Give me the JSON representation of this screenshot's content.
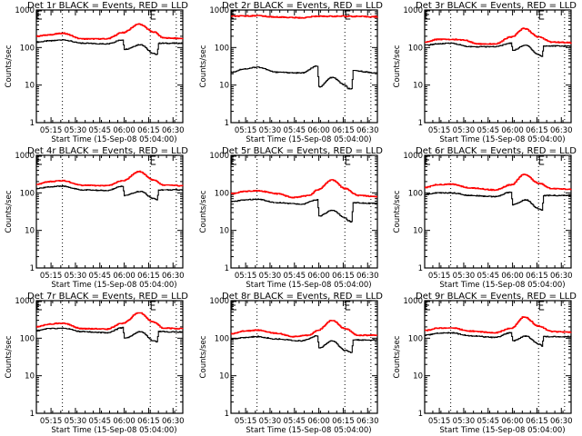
{
  "figure": {
    "background": "#ffffff",
    "colors": {
      "events": "#000000",
      "lld": "#ff0000",
      "axes": "#000000"
    }
  },
  "chart_data": [
    {
      "type": "line",
      "title": "Det 1r BLACK = Events, RED = LLD",
      "xlabel": "Start Time (15-Sep-08 05:04:00)",
      "ylabel": "Counts/sec",
      "yscale": "log",
      "ylim": [
        1,
        1000
      ],
      "yticks": [
        "1",
        "10",
        "100",
        "1000"
      ],
      "xticks": [
        "05:15",
        "05:30",
        "05:45",
        "06:00",
        "06:15",
        "06:30"
      ],
      "xlim_minutes": [
        2,
        92
      ],
      "vlines_minutes": [
        18,
        72,
        88
      ],
      "markers_minutes": [
        2,
        72
      ],
      "series": [
        {
          "name": "Events",
          "color": "#000000",
          "x": [
            2,
            10,
            18,
            30,
            45,
            55,
            56,
            66,
            74,
            76,
            77,
            92
          ],
          "y": [
            140,
            150,
            160,
            130,
            125,
            160,
            90,
            120,
            70,
            65,
            130,
            130
          ]
        },
        {
          "name": "LLD",
          "color": "#ff0000",
          "x": [
            2,
            10,
            18,
            30,
            45,
            55,
            65,
            74,
            80,
            92
          ],
          "y": [
            200,
            220,
            240,
            170,
            170,
            250,
            420,
            260,
            180,
            175
          ]
        }
      ]
    },
    {
      "type": "line",
      "title": "Det 2r BLACK = Events, RED = LLD",
      "xlabel": "Start Time (15-Sep-08 05:04:00)",
      "ylabel": "Counts/sec",
      "yscale": "log",
      "ylim": [
        1,
        1000
      ],
      "yticks": [
        "1",
        "10",
        "100",
        "1000"
      ],
      "xticks": [
        "05:15",
        "05:30",
        "05:45",
        "06:00",
        "06:15",
        "06:30"
      ],
      "xlim_minutes": [
        2,
        92
      ],
      "vlines_minutes": [
        18,
        72,
        88
      ],
      "markers_minutes": [
        2,
        72
      ],
      "series": [
        {
          "name": "Events",
          "color": "#000000",
          "x": [
            2,
            10,
            18,
            30,
            45,
            55,
            56,
            64,
            72,
            74,
            76,
            77,
            92
          ],
          "y": [
            22,
            27,
            30,
            22,
            21,
            32,
            9,
            16,
            10,
            8,
            8,
            24,
            21
          ]
        },
        {
          "name": "LLD",
          "color": "#ff0000",
          "x": [
            2,
            18,
            30,
            45,
            55,
            72,
            92
          ],
          "y": [
            680,
            700,
            650,
            620,
            680,
            680,
            660
          ]
        }
      ]
    },
    {
      "type": "line",
      "title": "Det 3r BLACK = Events, RED = LLD",
      "xlabel": "Start Time (15-Sep-08 05:04:00)",
      "ylabel": "Counts/sec",
      "yscale": "log",
      "ylim": [
        1,
        1000
      ],
      "yticks": [
        "1",
        "10",
        "100",
        "1000"
      ],
      "xticks": [
        "05:15",
        "05:30",
        "05:45",
        "06:00",
        "06:15",
        "06:30"
      ],
      "xlim_minutes": [
        2,
        92
      ],
      "vlines_minutes": [
        18,
        72,
        88
      ],
      "markers_minutes": [
        2,
        72
      ],
      "series": [
        {
          "name": "Events",
          "color": "#000000",
          "x": [
            2,
            10,
            18,
            30,
            45,
            55,
            56,
            64,
            72,
            74,
            75,
            92
          ],
          "y": [
            115,
            125,
            130,
            105,
            105,
            130,
            85,
            115,
            65,
            58,
            110,
            110
          ]
        },
        {
          "name": "LLD",
          "color": "#ff0000",
          "x": [
            2,
            10,
            18,
            25,
            35,
            45,
            55,
            63,
            72,
            80,
            92
          ],
          "y": [
            140,
            165,
            165,
            160,
            125,
            125,
            190,
            320,
            190,
            140,
            135
          ]
        }
      ]
    },
    {
      "type": "line",
      "title": "Det 4r BLACK = Events, RED = LLD",
      "xlabel": "Start Time (15-Sep-08 05:04:00)",
      "ylabel": "Counts/sec",
      "yscale": "log",
      "ylim": [
        1,
        1000
      ],
      "yticks": [
        "1",
        "10",
        "100",
        "1000"
      ],
      "xticks": [
        "05:15",
        "05:30",
        "05:45",
        "06:00",
        "06:15",
        "06:30"
      ],
      "xlim_minutes": [
        2,
        92
      ],
      "vlines_minutes": [
        18,
        72,
        88
      ],
      "markers_minutes": [
        2,
        72
      ],
      "series": [
        {
          "name": "Events",
          "color": "#000000",
          "x": [
            2,
            10,
            18,
            30,
            45,
            55,
            56,
            66,
            74,
            76,
            77,
            92
          ],
          "y": [
            130,
            145,
            150,
            120,
            115,
            150,
            85,
            110,
            70,
            65,
            120,
            120
          ]
        },
        {
          "name": "LLD",
          "color": "#ff0000",
          "x": [
            2,
            10,
            18,
            30,
            45,
            55,
            65,
            74,
            80,
            92
          ],
          "y": [
            170,
            200,
            210,
            160,
            155,
            210,
            370,
            220,
            160,
            155
          ]
        }
      ]
    },
    {
      "type": "line",
      "title": "Det 5r BLACK = Events, RED = LLD",
      "xlabel": "Start Time (15-Sep-08 05:04:00)",
      "ylabel": "Counts/sec",
      "yscale": "log",
      "ylim": [
        1,
        1000
      ],
      "yticks": [
        "1",
        "10",
        "100",
        "1000"
      ],
      "xticks": [
        "05:15",
        "05:30",
        "05:45",
        "06:00",
        "06:15",
        "06:30"
      ],
      "xlim_minutes": [
        2,
        92
      ],
      "vlines_minutes": [
        18,
        72,
        88
      ],
      "markers_minutes": [
        2,
        72
      ],
      "series": [
        {
          "name": "Events",
          "color": "#000000",
          "x": [
            2,
            10,
            18,
            30,
            45,
            55,
            56,
            64,
            72,
            74,
            76,
            77,
            92
          ],
          "y": [
            58,
            65,
            68,
            55,
            50,
            65,
            24,
            34,
            22,
            18,
            17,
            55,
            52
          ]
        },
        {
          "name": "LLD",
          "color": "#ff0000",
          "x": [
            2,
            10,
            18,
            30,
            40,
            50,
            55,
            64,
            72,
            80,
            92
          ],
          "y": [
            95,
            110,
            115,
            95,
            75,
            85,
            120,
            220,
            130,
            85,
            80
          ]
        }
      ]
    },
    {
      "type": "line",
      "title": "Det 6r BLACK = Events, RED = LLD",
      "xlabel": "Start Time (15-Sep-08 05:04:00)",
      "ylabel": "Counts/sec",
      "yscale": "log",
      "ylim": [
        1,
        1000
      ],
      "yticks": [
        "1",
        "10",
        "100",
        "1000"
      ],
      "xticks": [
        "05:15",
        "05:30",
        "05:45",
        "06:00",
        "06:15",
        "06:30"
      ],
      "xlim_minutes": [
        2,
        92
      ],
      "vlines_minutes": [
        18,
        72,
        88
      ],
      "markers_minutes": [
        2,
        72
      ],
      "series": [
        {
          "name": "Events",
          "color": "#000000",
          "x": [
            2,
            10,
            18,
            30,
            45,
            55,
            56,
            64,
            72,
            74,
            75,
            92
          ],
          "y": [
            90,
            100,
            100,
            85,
            80,
            105,
            48,
            65,
            38,
            35,
            85,
            85
          ]
        },
        {
          "name": "LLD",
          "color": "#ff0000",
          "x": [
            2,
            10,
            18,
            30,
            45,
            55,
            63,
            72,
            80,
            92
          ],
          "y": [
            140,
            165,
            170,
            135,
            120,
            165,
            310,
            180,
            130,
            125
          ]
        }
      ]
    },
    {
      "type": "line",
      "title": "Det 7r BLACK = Events, RED = LLD",
      "xlabel": "Start Time (15-Sep-08 05:04:00)",
      "ylabel": "Counts/sec",
      "yscale": "log",
      "ylim": [
        1,
        1000
      ],
      "yticks": [
        "1",
        "10",
        "100",
        "1000"
      ],
      "xticks": [
        "05:15",
        "05:30",
        "05:45",
        "06:00",
        "06:15",
        "06:30"
      ],
      "xlim_minutes": [
        2,
        92
      ],
      "vlines_minutes": [
        18,
        72,
        88
      ],
      "markers_minutes": [
        2,
        72
      ],
      "series": [
        {
          "name": "Events",
          "color": "#000000",
          "x": [
            2,
            10,
            18,
            30,
            45,
            55,
            56,
            66,
            74,
            76,
            77,
            92
          ],
          "y": [
            160,
            180,
            185,
            150,
            140,
            190,
            100,
            150,
            85,
            80,
            150,
            145
          ]
        },
        {
          "name": "LLD",
          "color": "#ff0000",
          "x": [
            2,
            10,
            18,
            30,
            45,
            55,
            65,
            74,
            80,
            92
          ],
          "y": [
            200,
            240,
            250,
            180,
            175,
            250,
            480,
            270,
            185,
            180
          ]
        }
      ]
    },
    {
      "type": "line",
      "title": "Det 8r BLACK = Events, RED = LLD",
      "xlabel": "Start Time (15-Sep-08 05:04:00)",
      "ylabel": "Counts/sec",
      "yscale": "log",
      "ylim": [
        1,
        1000
      ],
      "yticks": [
        "1",
        "10",
        "100",
        "1000"
      ],
      "xticks": [
        "05:15",
        "05:30",
        "05:45",
        "06:00",
        "06:15",
        "06:30"
      ],
      "xlim_minutes": [
        2,
        92
      ],
      "vlines_minutes": [
        18,
        72,
        88
      ],
      "markers_minutes": [
        2,
        72
      ],
      "series": [
        {
          "name": "Events",
          "color": "#000000",
          "x": [
            2,
            10,
            18,
            30,
            45,
            55,
            56,
            64,
            72,
            74,
            76,
            77,
            92
          ],
          "y": [
            95,
            105,
            110,
            95,
            85,
            115,
            55,
            85,
            48,
            45,
            42,
            90,
            90
          ]
        },
        {
          "name": "LLD",
          "color": "#ff0000",
          "x": [
            2,
            10,
            18,
            30,
            40,
            50,
            55,
            64,
            72,
            80,
            92
          ],
          "y": [
            130,
            155,
            165,
            135,
            110,
            120,
            160,
            300,
            180,
            120,
            120
          ]
        }
      ]
    },
    {
      "type": "line",
      "title": "Det 9r BLACK = Events, RED = LLD",
      "xlabel": "Start Time (15-Sep-08 05:04:00)",
      "ylabel": "Counts/sec",
      "yscale": "log",
      "ylim": [
        1,
        1000
      ],
      "yticks": [
        "1",
        "10",
        "100",
        "1000"
      ],
      "xticks": [
        "05:15",
        "05:30",
        "05:45",
        "06:00",
        "06:15",
        "06:30"
      ],
      "xlim_minutes": [
        2,
        92
      ],
      "vlines_minutes": [
        18,
        72,
        88
      ],
      "markers_minutes": [
        2,
        72
      ],
      "series": [
        {
          "name": "Events",
          "color": "#000000",
          "x": [
            2,
            10,
            18,
            30,
            45,
            55,
            56,
            64,
            72,
            74,
            75,
            92
          ],
          "y": [
            120,
            135,
            140,
            115,
            105,
            140,
            85,
            115,
            70,
            62,
            110,
            110
          ]
        },
        {
          "name": "LLD",
          "color": "#ff0000",
          "x": [
            2,
            10,
            18,
            30,
            45,
            55,
            63,
            72,
            80,
            92
          ],
          "y": [
            160,
            185,
            190,
            155,
            140,
            185,
            370,
            210,
            150,
            145
          ]
        }
      ]
    }
  ]
}
